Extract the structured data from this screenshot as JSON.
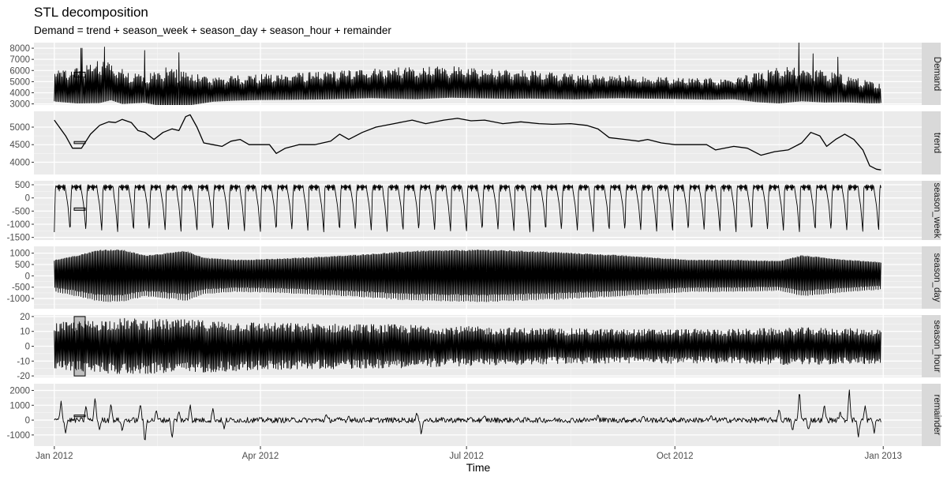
{
  "chart_data": {
    "type": "line",
    "title": "STL decomposition",
    "subtitle": "Demand = trend + season_week + season_day + season_hour + remainder",
    "xlabel": "Time",
    "x_range": [
      "2011-12-23",
      "2013-01-18"
    ],
    "x_ticks": [
      {
        "date": "2012-01-01",
        "label": "Jan 2012"
      },
      {
        "date": "2012-04-01",
        "label": "Apr 2012"
      },
      {
        "date": "2012-07-01",
        "label": "Jul 2012"
      },
      {
        "date": "2012-10-01",
        "label": "Oct 2012"
      },
      {
        "date": "2013-01-01",
        "label": "Jan 2013"
      }
    ],
    "x_start": "2012-01-01",
    "x_end": "2012-12-31",
    "grid": true,
    "panels": [
      {
        "name": "Demand",
        "ylim": [
          2900,
          8500
        ],
        "y_ticks": [
          3000,
          4000,
          5000,
          6000,
          7000,
          8000
        ],
        "scale_bar": [
          5400,
          5850
        ],
        "mean": 4700,
        "knots": [
          [
            0,
            4500
          ],
          [
            10,
            4600
          ],
          [
            20,
            4900
          ],
          [
            25,
            5000
          ],
          [
            30,
            4500
          ],
          [
            40,
            4300
          ],
          [
            50,
            4400
          ],
          [
            60,
            4300
          ],
          [
            70,
            4300
          ],
          [
            80,
            4400
          ],
          [
            100,
            4500
          ],
          [
            120,
            4600
          ],
          [
            140,
            4800
          ],
          [
            160,
            4800
          ],
          [
            175,
            4900
          ],
          [
            190,
            4800
          ],
          [
            210,
            4700
          ],
          [
            230,
            4500
          ],
          [
            250,
            4500
          ],
          [
            270,
            4400
          ],
          [
            290,
            4300
          ],
          [
            310,
            4400
          ],
          [
            320,
            4600
          ],
          [
            330,
            4700
          ],
          [
            340,
            4500
          ],
          [
            350,
            4300
          ],
          [
            360,
            4000
          ],
          [
            365,
            3900
          ]
        ],
        "amp_knots": [
          [
            0,
            1400
          ],
          [
            20,
            2000
          ],
          [
            40,
            1300
          ],
          [
            50,
            1900
          ],
          [
            70,
            1200
          ],
          [
            90,
            1200
          ],
          [
            120,
            1300
          ],
          [
            160,
            1500
          ],
          [
            200,
            1400
          ],
          [
            240,
            1100
          ],
          [
            280,
            1000
          ],
          [
            300,
            1000
          ],
          [
            320,
            1700
          ],
          [
            340,
            1500
          ],
          [
            365,
            900
          ]
        ],
        "spikes": [
          [
            12,
            8000
          ],
          [
            22,
            8100
          ],
          [
            40,
            7800
          ],
          [
            55,
            7600
          ],
          [
            329,
            8500
          ],
          [
            335,
            7500
          ],
          [
            346,
            7200
          ]
        ]
      },
      {
        "name": "trend",
        "ylim": [
          3650,
          5450
        ],
        "y_ticks": [
          4000,
          4500,
          5000
        ],
        "scale_bar": [
          4530,
          4590
        ],
        "points": [
          [
            0,
            5200
          ],
          [
            5,
            4750
          ],
          [
            8,
            4400
          ],
          [
            12,
            4400
          ],
          [
            16,
            4800
          ],
          [
            20,
            5050
          ],
          [
            24,
            5150
          ],
          [
            27,
            5130
          ],
          [
            30,
            5220
          ],
          [
            34,
            5130
          ],
          [
            37,
            4900
          ],
          [
            40,
            4850
          ],
          [
            44,
            4650
          ],
          [
            48,
            4850
          ],
          [
            52,
            4950
          ],
          [
            55,
            4900
          ],
          [
            58,
            5300
          ],
          [
            60,
            5350
          ],
          [
            63,
            5000
          ],
          [
            66,
            4550
          ],
          [
            70,
            4500
          ],
          [
            74,
            4450
          ],
          [
            78,
            4600
          ],
          [
            82,
            4650
          ],
          [
            86,
            4500
          ],
          [
            90,
            4500
          ],
          [
            95,
            4500
          ],
          [
            98,
            4250
          ],
          [
            102,
            4400
          ],
          [
            108,
            4500
          ],
          [
            115,
            4500
          ],
          [
            122,
            4600
          ],
          [
            126,
            4800
          ],
          [
            130,
            4650
          ],
          [
            136,
            4850
          ],
          [
            142,
            5000
          ],
          [
            150,
            5100
          ],
          [
            158,
            5200
          ],
          [
            164,
            5100
          ],
          [
            172,
            5200
          ],
          [
            178,
            5250
          ],
          [
            184,
            5180
          ],
          [
            190,
            5200
          ],
          [
            198,
            5100
          ],
          [
            206,
            5150
          ],
          [
            214,
            5100
          ],
          [
            220,
            5080
          ],
          [
            228,
            5100
          ],
          [
            235,
            5050
          ],
          [
            240,
            4950
          ],
          [
            245,
            4700
          ],
          [
            252,
            4650
          ],
          [
            258,
            4600
          ],
          [
            262,
            4650
          ],
          [
            268,
            4550
          ],
          [
            274,
            4500
          ],
          [
            280,
            4500
          ],
          [
            288,
            4500
          ],
          [
            292,
            4350
          ],
          [
            300,
            4450
          ],
          [
            306,
            4400
          ],
          [
            312,
            4200
          ],
          [
            318,
            4300
          ],
          [
            324,
            4350
          ],
          [
            330,
            4550
          ],
          [
            334,
            4850
          ],
          [
            338,
            4750
          ],
          [
            341,
            4450
          ],
          [
            345,
            4650
          ],
          [
            349,
            4800
          ],
          [
            353,
            4650
          ],
          [
            357,
            4350
          ],
          [
            360,
            3900
          ],
          [
            363,
            3800
          ],
          [
            365,
            3780
          ]
        ]
      },
      {
        "name": "season_week",
        "ylim": [
          -1600,
          650
        ],
        "y_ticks": [
          -1500,
          -1000,
          -500,
          0,
          500
        ],
        "scale_bar": [
          -470,
          -380
        ],
        "high": 500,
        "mid": 250,
        "low": -1300
      },
      {
        "name": "season_day",
        "ylim": [
          -1450,
          1300
        ],
        "y_ticks": [
          -1500,
          -1000,
          -500,
          0,
          500,
          1000
        ],
        "scale_bar": [
          -160,
          -60
        ],
        "amp_knots": [
          [
            0,
            700
          ],
          [
            10,
            900
          ],
          [
            20,
            1150
          ],
          [
            30,
            1150
          ],
          [
            40,
            900
          ],
          [
            50,
            1000
          ],
          [
            58,
            1100
          ],
          [
            66,
            800
          ],
          [
            80,
            700
          ],
          [
            100,
            750
          ],
          [
            130,
            900
          ],
          [
            160,
            1100
          ],
          [
            190,
            1150
          ],
          [
            220,
            1050
          ],
          [
            250,
            900
          ],
          [
            280,
            700
          ],
          [
            300,
            700
          ],
          [
            320,
            650
          ],
          [
            330,
            900
          ],
          [
            340,
            800
          ],
          [
            350,
            700
          ],
          [
            365,
            600
          ]
        ]
      },
      {
        "name": "season_hour",
        "ylim": [
          -21,
          21
        ],
        "y_ticks": [
          -20,
          -10,
          0,
          10,
          20
        ],
        "scale_bar": [
          -20,
          20
        ],
        "amp_knots": [
          [
            0,
            15
          ],
          [
            30,
            18
          ],
          [
            60,
            17
          ],
          [
            100,
            15
          ],
          [
            150,
            14
          ],
          [
            200,
            12
          ],
          [
            250,
            11
          ],
          [
            300,
            11
          ],
          [
            330,
            12
          ],
          [
            365,
            11
          ]
        ]
      },
      {
        "name": "remainder",
        "ylim": [
          -1750,
          2450
        ],
        "y_ticks": [
          -1000,
          0,
          1000,
          2000
        ],
        "scale_bar": [
          230,
          340
        ],
        "spikes": [
          [
            3,
            1300
          ],
          [
            5,
            -900
          ],
          [
            14,
            1000
          ],
          [
            18,
            1600
          ],
          [
            20,
            -700
          ],
          [
            25,
            1200
          ],
          [
            30,
            -800
          ],
          [
            38,
            1200
          ],
          [
            40,
            -1600
          ],
          [
            45,
            700
          ],
          [
            52,
            -1300
          ],
          [
            55,
            600
          ],
          [
            60,
            1100
          ],
          [
            70,
            800
          ],
          [
            75,
            -600
          ],
          [
            120,
            400
          ],
          [
            130,
            300
          ],
          [
            160,
            500
          ],
          [
            162,
            -1000
          ],
          [
            190,
            300
          ],
          [
            240,
            400
          ],
          [
            260,
            300
          ],
          [
            290,
            300
          ],
          [
            320,
            800
          ],
          [
            326,
            -800
          ],
          [
            329,
            2100
          ],
          [
            333,
            -700
          ],
          [
            340,
            1100
          ],
          [
            347,
            600
          ],
          [
            351,
            2200
          ],
          [
            355,
            -1200
          ],
          [
            358,
            1000
          ],
          [
            362,
            -900
          ]
        ]
      }
    ]
  }
}
